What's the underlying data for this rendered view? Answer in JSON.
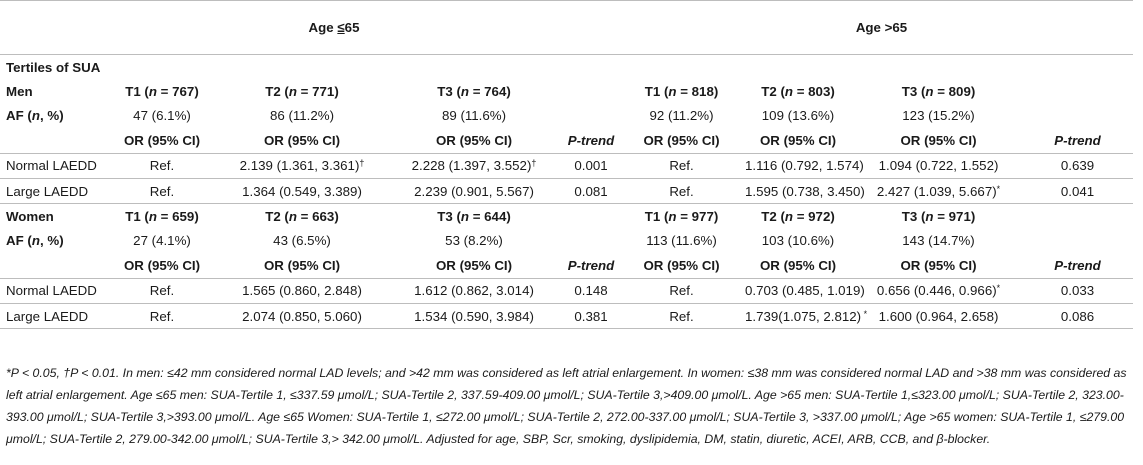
{
  "header": {
    "age_low_prefix": "Age ",
    "age_low_op": "≤",
    "age_low_num": "65",
    "age_high": "Age >65"
  },
  "section_title": "Tertiles of SUA",
  "men": {
    "label": "Men",
    "tertiles": [
      {
        "t": "T1",
        "n": "767"
      },
      {
        "t": "T2",
        "n": "771"
      },
      {
        "t": "T3",
        "n": "764"
      },
      {
        "t": "T1",
        "n": "818"
      },
      {
        "t": "T2",
        "n": "803"
      },
      {
        "t": "T3",
        "n": "809"
      }
    ],
    "af_label_pre": "AF (",
    "af_label_n": "n",
    "af_label_post": ", %)",
    "af": [
      "47 (6.1%)",
      "86 (11.2%)",
      "89 (11.6%)",
      "92 (11.2%)",
      "109 (13.6%)",
      "123 (15.2%)"
    ],
    "or_label": "OR (95% CI)",
    "ptrend_label": "P-trend",
    "rows": [
      {
        "label": "Normal LAEDD",
        "low": [
          "Ref.",
          "2.139 (1.361, 3.361)",
          "2.228 (1.397, 3.552)",
          "0.001"
        ],
        "low_marks": [
          "",
          "†",
          "†"
        ],
        "high": [
          "Ref.",
          "1.116 (0.792, 1.574)",
          "1.094 (0.722, 1.552)",
          "0.639"
        ],
        "high_marks": [
          "",
          "",
          ""
        ]
      },
      {
        "label": "Large LAEDD",
        "low": [
          "Ref.",
          "1.364 (0.549, 3.389)",
          "2.239 (0.901, 5.567)",
          "0.081"
        ],
        "low_marks": [
          "",
          "",
          ""
        ],
        "high": [
          "Ref.",
          "1.595 (0.738, 3.450)",
          "2.427 (1.039, 5.667)",
          "0.041"
        ],
        "high_marks": [
          "",
          "",
          "*"
        ]
      }
    ]
  },
  "women": {
    "label": "Women",
    "tertiles": [
      {
        "t": "T1",
        "n": "659"
      },
      {
        "t": "T2",
        "n": "663"
      },
      {
        "t": "T3",
        "n": "644"
      },
      {
        "t": "T1",
        "n": "977"
      },
      {
        "t": "T2",
        "n": "972"
      },
      {
        "t": "T3",
        "n": "971"
      }
    ],
    "af": [
      "27 (4.1%)",
      "43 (6.5%)",
      "53 (8.2%)",
      "113 (11.6%)",
      "103 (10.6%)",
      "143 (14.7%)"
    ],
    "rows": [
      {
        "label": "Normal LAEDD",
        "low": [
          "Ref.",
          "1.565 (0.860, 2.848)",
          "1.612 (0.862, 3.014)",
          "0.148"
        ],
        "low_marks": [
          "",
          "",
          ""
        ],
        "high": [
          "Ref.",
          "0.703 (0.485, 1.019)",
          "0.656 (0.446, 0.966)",
          "0.033"
        ],
        "high_marks": [
          "",
          "",
          "*"
        ]
      },
      {
        "label": "Large LAEDD",
        "low": [
          "Ref.",
          "2.074 (0.850, 5.060)",
          "1.534 (0.590, 3.984)",
          "0.381"
        ],
        "low_marks": [
          "",
          "",
          ""
        ],
        "high": [
          "Ref.",
          "1.739(1.075, 2.812)",
          "1.600 (0.964, 2.658)",
          "0.086"
        ],
        "high_marks": [
          "",
          " *",
          ""
        ]
      }
    ]
  },
  "footnote": "*P < 0.05, †P < 0.01. In men: ≤42 mm considered normal LAD levels; and >42 mm was considered as left atrial enlargement. In women: ≤38 mm was considered normal LAD and >38 mm was considered as left atrial enlargement. Age ≤65 men: SUA-Tertile 1, ≤337.59 μmol/L; SUA-Tertile 2, 337.59-409.00 μmol/L; SUA-Tertile 3,>409.00 μmol/L. Age >65 men: SUA-Tertile 1,≤323.00 μmol/L; SUA-Tertile 2, 323.00-393.00 μmol/L; SUA-Tertile 3,>393.00 μmol/L. Age ≤65 Women: SUA-Tertile 1, ≤272.00 μmol/L; SUA-Tertile 2, 272.00-337.00 μmol/L; SUA-Tertile 3, >337.00 μmol/L; Age >65 women: SUA-Tertile 1, ≤279.00 μmol/L; SUA-Tertile 2, 279.00-342.00 μmol/L; SUA-Tertile 3,> 342.00 μmol/L. Adjusted for age, SBP, Scr, smoking, dyslipidemia, DM, statin, diuretic, ACEI, ARB, CCB, and β-blocker."
}
